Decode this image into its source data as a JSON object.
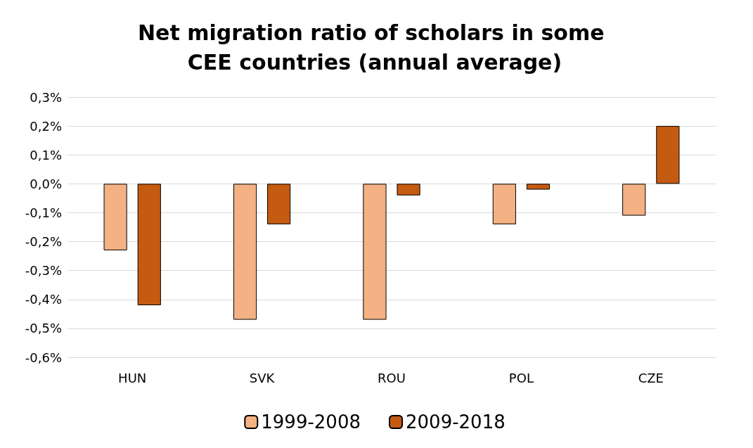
{
  "chart_data": {
    "type": "bar",
    "title": "Net migration ratio of scholars in some CEE countries (annual average)",
    "categories": [
      "HUN",
      "SVK",
      "ROU",
      "POL",
      "CZE"
    ],
    "series": [
      {
        "name": "1999-2008",
        "color": "#f4b183",
        "values": [
          -0.23,
          -0.47,
          -0.47,
          -0.14,
          -0.11
        ]
      },
      {
        "name": "2009-2018",
        "color": "#c55a11",
        "values": [
          -0.42,
          -0.14,
          -0.04,
          -0.02,
          0.2
        ]
      }
    ],
    "ylim": [
      -0.6,
      0.3
    ],
    "yticks": [
      {
        "value": -0.6,
        "label": "-0,6%"
      },
      {
        "value": -0.5,
        "label": "-0,5%"
      },
      {
        "value": -0.4,
        "label": "-0,4%"
      },
      {
        "value": -0.3,
        "label": "-0,3%"
      },
      {
        "value": -0.2,
        "label": "-0,2%"
      },
      {
        "value": -0.1,
        "label": "-0,1%"
      },
      {
        "value": 0,
        "label": "0,0%"
      },
      {
        "value": 0.1,
        "label": "0,1%"
      },
      {
        "value": 0.2,
        "label": "0,2%"
      },
      {
        "value": 0.3,
        "label": "0,3%"
      }
    ],
    "grid": "y",
    "legend": "bottom"
  }
}
